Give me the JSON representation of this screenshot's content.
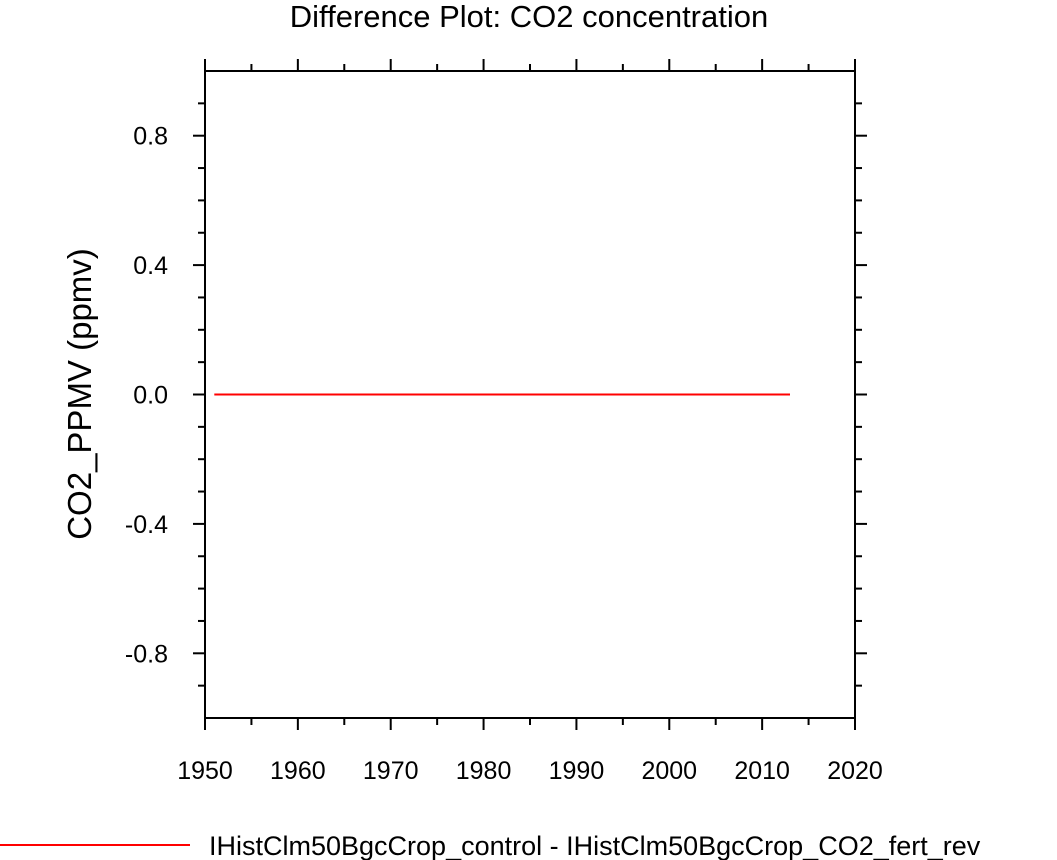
{
  "chart_data": {
    "type": "line",
    "title": "Difference Plot: CO2 concentration",
    "xlabel": "",
    "ylabel": "CO2_PPMV  (ppmv)",
    "xlim": [
      1950,
      2020
    ],
    "ylim": [
      -1.0,
      1.0
    ],
    "x_ticks": [
      1950,
      1960,
      1970,
      1980,
      1990,
      2000,
      2010,
      2020
    ],
    "x_tick_labels": [
      "1950",
      "1960",
      "1970",
      "1980",
      "1990",
      "2000",
      "2010",
      "2020"
    ],
    "y_ticks": [
      0.8,
      0.4,
      0.0,
      -0.4,
      -0.8
    ],
    "y_tick_labels": [
      "0.8",
      "0.4",
      "0.0",
      "-0.4",
      "-0.8"
    ],
    "grid": false,
    "legend_position": "bottom",
    "series": [
      {
        "name": "IHistClm50BgcCrop_control - IHistClm50BgcCrop_CO2_fert_rev",
        "color": "#ff0000",
        "x": [
          1951,
          2013
        ],
        "y": [
          0.0,
          0.0
        ]
      }
    ]
  }
}
